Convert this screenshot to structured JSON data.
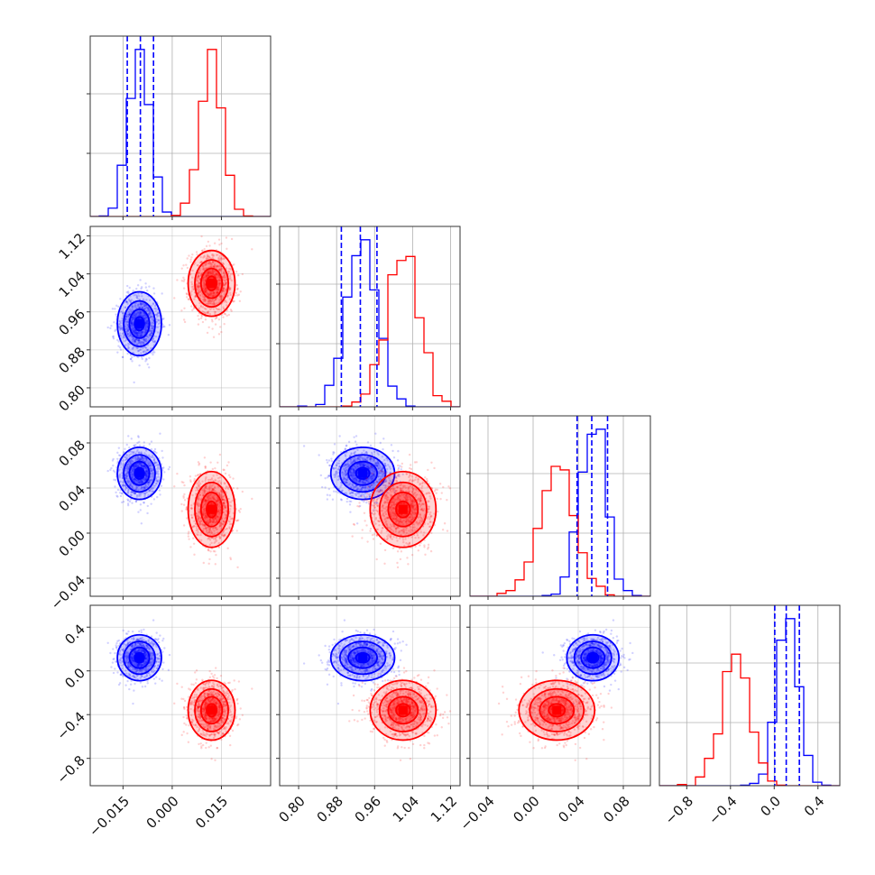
{
  "chart_data": {
    "type": "corner",
    "title": "",
    "params": [
      {
        "range": [
          -0.025,
          0.03
        ],
        "ticks": [
          -0.015,
          0.0,
          0.015
        ],
        "tick_labels": [
          "−0.015",
          "0.000",
          "0.015"
        ]
      },
      {
        "range": [
          0.76,
          1.14
        ],
        "ticks": [
          0.8,
          0.88,
          0.96,
          1.04,
          1.12
        ],
        "tick_labels": [
          "0.80",
          "0.88",
          "0.96",
          "1.04",
          "1.12"
        ]
      },
      {
        "range": [
          -0.056,
          0.104
        ],
        "ticks": [
          -0.04,
          0.0,
          0.04,
          0.08
        ],
        "tick_labels": [
          "−0.04",
          "0.00",
          "0.04",
          "0.08"
        ]
      },
      {
        "range": [
          -1.05,
          0.6
        ],
        "ticks": [
          -0.8,
          -0.4,
          0.0,
          0.4
        ],
        "tick_labels": [
          "−0.8",
          "−0.4",
          "0.0",
          "0.4"
        ]
      }
    ],
    "series": [
      {
        "color": "#0000ff",
        "mean": [
          -0.01,
          0.935,
          0.053,
          0.12
        ],
        "std": [
          0.0032,
          0.032,
          0.011,
          0.1
        ],
        "quantiles": [
          [
            -0.0137,
            -0.0097,
            -0.0057
          ],
          [
            0.89,
            0.93,
            0.965
          ],
          [
            0.039,
            0.052,
            0.066
          ],
          [
            0.005,
            0.11,
            0.23
          ]
        ]
      },
      {
        "color": "#ff0000",
        "mean": [
          0.012,
          1.02,
          0.021,
          -0.36
        ],
        "std": [
          0.0034,
          0.033,
          0.016,
          0.13
        ],
        "quantiles": []
      }
    ],
    "grid": true,
    "legend": "none"
  }
}
